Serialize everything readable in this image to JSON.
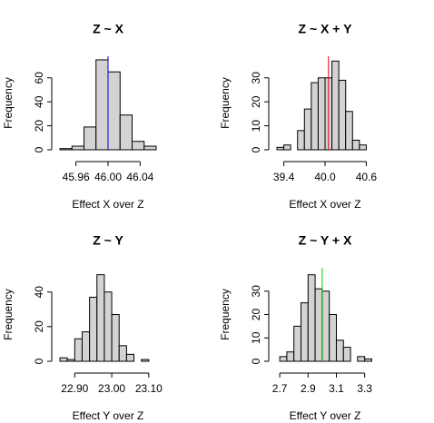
{
  "chart_data": [
    {
      "type": "histogram",
      "title": "Z ~ X",
      "x_label": "Effect X over Z",
      "y_label": "Frequency",
      "color": "#d3d3d3",
      "bins": [
        45.94,
        45.955,
        45.97,
        45.985,
        46.0,
        46.015,
        46.03,
        46.045,
        46.06
      ],
      "values": [
        1,
        3,
        19,
        75,
        65,
        29,
        7,
        3
      ],
      "xlim": [
        45.94,
        46.06
      ],
      "ylim": [
        0,
        78
      ],
      "xticks": [
        {
          "value": 45.96,
          "label": "45.96"
        },
        {
          "value": 46.0,
          "label": "46.00"
        },
        {
          "value": 46.04,
          "label": "46.04"
        }
      ],
      "yticks": [
        0,
        20,
        40,
        60
      ],
      "vline": {
        "value": 46.0,
        "color": "#0000cd"
      }
    },
    {
      "type": "histogram",
      "title": "Z ~ X + Y",
      "x_label": "Effect X over Z",
      "y_label": "Frequency",
      "color": "#d3d3d3",
      "bins": [
        39.3,
        39.4,
        39.5,
        39.6,
        39.7,
        39.8,
        39.9,
        40.0,
        40.1,
        40.2,
        40.3,
        40.4,
        40.5,
        40.6
      ],
      "values": [
        1,
        2,
        0,
        8,
        17,
        28,
        30,
        30,
        37,
        29,
        16,
        4,
        2
      ],
      "xlim": [
        39.3,
        40.7
      ],
      "ylim": [
        0,
        39
      ],
      "xticks": [
        39.4,
        {
          "value": 40.0,
          "label": "40.0"
        },
        40.6
      ],
      "yticks": [
        0,
        10,
        20,
        30
      ],
      "vline": {
        "value": 40.05,
        "color": "#e00000"
      }
    },
    {
      "type": "histogram",
      "title": "Z ~ Y",
      "x_label": "Effect Y over Z",
      "y_label": "Frequency",
      "color": "#d3d3d3",
      "bins": [
        22.86,
        22.88,
        22.9,
        22.92,
        22.94,
        22.96,
        22.98,
        23.0,
        23.02,
        23.04,
        23.06,
        23.08,
        23.1
      ],
      "values": [
        2,
        1,
        13,
        17,
        37,
        50,
        40,
        27,
        9,
        4,
        0,
        1
      ],
      "xlim": [
        22.86,
        23.12
      ],
      "ylim": [
        0,
        54
      ],
      "xticks": [
        {
          "value": 22.9,
          "label": "22.90"
        },
        {
          "value": 23.0,
          "label": "23.00"
        },
        {
          "value": 23.1,
          "label": "23.10"
        }
      ],
      "yticks": [
        0,
        20,
        40
      ]
    },
    {
      "type": "histogram",
      "title": "Z ~ Y + X",
      "x_label": "Effect Y over Z",
      "y_label": "Frequency",
      "color": "#d3d3d3",
      "bins": [
        2.7,
        2.75,
        2.8,
        2.85,
        2.9,
        2.95,
        3.0,
        3.05,
        3.1,
        3.15,
        3.2,
        3.25,
        3.3,
        3.35
      ],
      "values": [
        2,
        4,
        15,
        25,
        37,
        31,
        30,
        20,
        9,
        6,
        0,
        2,
        1
      ],
      "xlim": [
        2.68,
        3.36
      ],
      "ylim": [
        0,
        40
      ],
      "xticks": [
        2.7,
        2.9,
        3.1,
        3.3
      ],
      "yticks": [
        0,
        10,
        20,
        30
      ],
      "vline": {
        "value": 3.0,
        "color": "#00cd00"
      }
    }
  ]
}
